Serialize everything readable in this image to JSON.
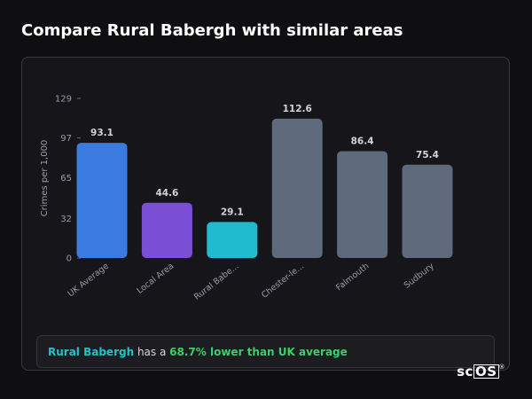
{
  "page": {
    "title": "Compare Rural Babergh with similar areas"
  },
  "chart_data": {
    "type": "bar",
    "categories": [
      "UK Average",
      "Local Area",
      "Rural Babe...",
      "Chester-le...",
      "Falmouth",
      "Sudbury"
    ],
    "values": [
      93.1,
      44.6,
      29.1,
      112.6,
      86.4,
      75.4
    ],
    "value_labels": [
      "93.1",
      "44.6",
      "29.1",
      "112.6",
      "86.4",
      "75.4"
    ],
    "colors": [
      "#3b7be0",
      "#7b4fd6",
      "#1fbcd0",
      "#5f6a7c",
      "#5f6a7c",
      "#5f6a7c"
    ],
    "ylabel": "Crimes per 1,000",
    "yticks": [
      0,
      32,
      65,
      97,
      129
    ],
    "ylim": [
      0,
      129
    ],
    "grid": false,
    "legend": "none"
  },
  "summary": {
    "area": "Rural Babergh",
    "connector": "has a",
    "delta": "68.7% lower than UK average"
  },
  "logo": {
    "main": "sc",
    "boxed": "OS",
    "mark": "®"
  }
}
